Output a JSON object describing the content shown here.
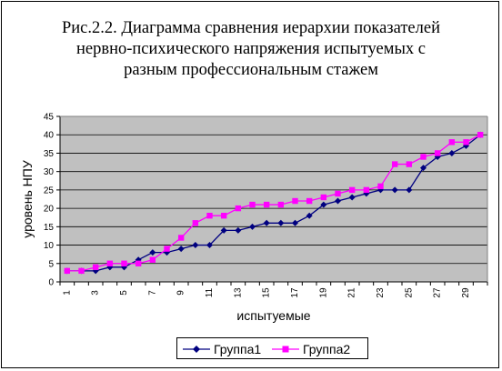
{
  "chart_data": {
    "type": "line",
    "title_lines": [
      "Рис.2.2. Диаграмма сравнения иерархии показателей",
      "нервно-психического напряжения испытуемых с",
      "разным профессиональным стажем"
    ],
    "xlabel": "испытуемые",
    "ylabel": "уровень НПУ",
    "ylim": [
      0,
      45
    ],
    "yticks": [
      0,
      5,
      10,
      15,
      20,
      25,
      30,
      35,
      40,
      45
    ],
    "x": [
      1,
      2,
      3,
      4,
      5,
      6,
      7,
      8,
      9,
      10,
      11,
      12,
      13,
      14,
      15,
      16,
      17,
      18,
      19,
      20,
      21,
      22,
      23,
      24,
      25,
      26,
      27,
      28,
      29,
      30
    ],
    "xtick_labels": [
      "1",
      "3",
      "5",
      "7",
      "9",
      "11",
      "13",
      "15",
      "17",
      "19",
      "21",
      "23",
      "25",
      "27",
      "29"
    ],
    "grid": "horizontal",
    "legend_position": "bottom",
    "series": [
      {
        "name": "Группа1",
        "color": "#000080",
        "marker": "diamond",
        "values": [
          3,
          3,
          3,
          4,
          4,
          6,
          8,
          8,
          9,
          10,
          10,
          14,
          14,
          15,
          16,
          16,
          16,
          18,
          21,
          22,
          23,
          24,
          25,
          25,
          25,
          31,
          34,
          35,
          37,
          40
        ]
      },
      {
        "name": "Группа2",
        "color": "#FF00FF",
        "marker": "square",
        "values": [
          3,
          3,
          4,
          5,
          5,
          5,
          6,
          9,
          12,
          16,
          18,
          18,
          20,
          21,
          21,
          21,
          22,
          22,
          23,
          24,
          25,
          25,
          26,
          32,
          32,
          34,
          35,
          38,
          38,
          40
        ]
      }
    ],
    "plot_background": "#C0C0C0"
  }
}
